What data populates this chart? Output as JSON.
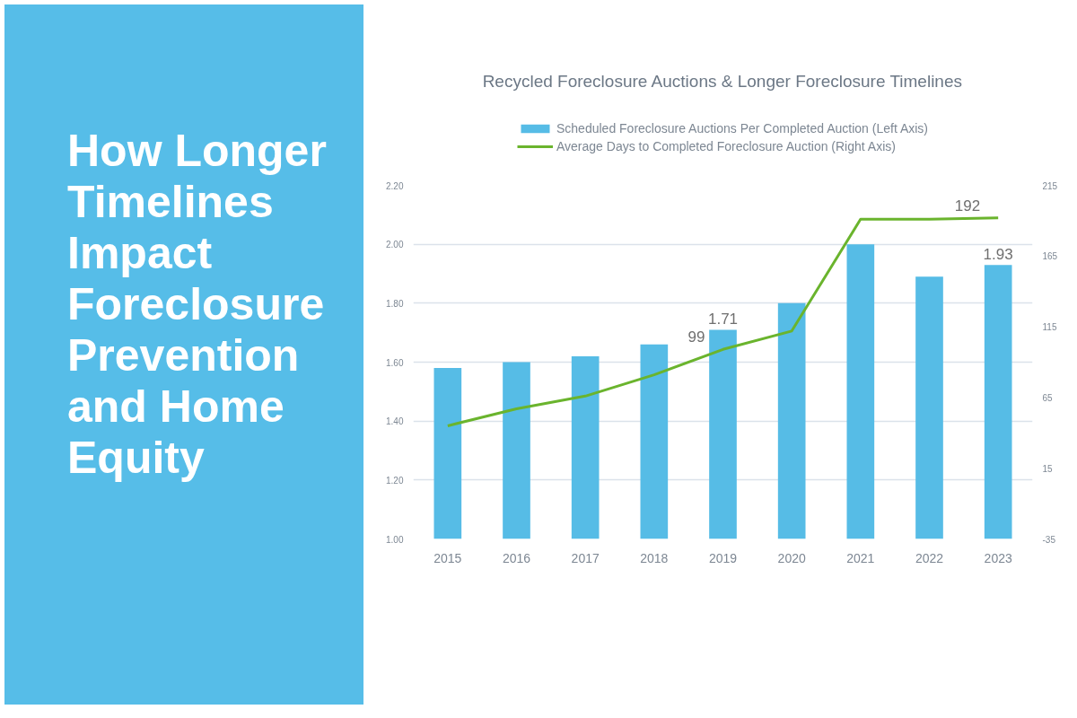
{
  "chart_data": {
    "type": "bar",
    "title": "How Longer Timelines Impact Foreclosure Prevention and Home Equity",
    "subtitle": "Recycled Foreclosure Auctions & Longer Foreclosure Timelines",
    "categories": [
      "2015",
      "2016",
      "2017",
      "2018",
      "2019",
      "2020",
      "2021",
      "2022",
      "2023"
    ],
    "series": [
      {
        "name": "Scheduled Foreclosure Auctions Per Completed Auction (Left Axis)",
        "color": "#56bce6",
        "values": [
          1.58,
          1.6,
          1.62,
          1.66,
          1.71,
          1.8,
          2.0,
          1.89,
          1.93
        ],
        "value_labels": [
          null,
          null,
          null,
          null,
          "1.71",
          null,
          null,
          null,
          "1.93"
        ]
      },
      {
        "name": "Average Days to Completed Foreclosure Auction (Right Axis)",
        "type": "line",
        "axis": "y2",
        "color": "#6ab42d",
        "values": [
          45,
          57,
          66,
          81,
          99,
          112,
          191,
          191,
          192
        ],
        "value_labels": [
          null,
          null,
          null,
          null,
          "99",
          null,
          null,
          null,
          "192"
        ]
      }
    ],
    "ylim": [
      1.0,
      2.2
    ],
    "yticks": [
      {
        "value": 1.0,
        "label": "1.00"
      },
      {
        "value": 1.2,
        "label": "1.20"
      },
      {
        "value": 1.4,
        "label": "1.40"
      },
      {
        "value": 1.6,
        "label": "1.60"
      },
      {
        "value": 1.8,
        "label": "1.80"
      },
      {
        "value": 2.0,
        "label": "2.00"
      },
      {
        "value": 2.2,
        "label": "2.20"
      }
    ],
    "y2lim": [
      -35,
      215
    ],
    "y2ticks": [
      -35,
      15,
      65,
      115,
      165,
      215
    ],
    "grid": "y",
    "legend": "top"
  }
}
